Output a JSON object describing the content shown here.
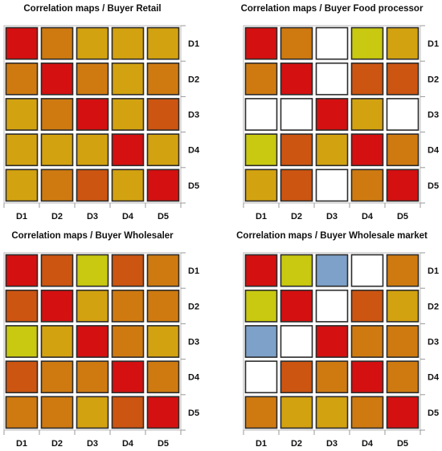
{
  "palette": {
    "red": "#d41010",
    "orange_red": "#cc5511",
    "orange": "#cf7a10",
    "gold": "#d3a210",
    "yellow_green": "#c8c910",
    "white": "#ffffff",
    "blue": "#7da1c9"
  },
  "chart_data": [
    {
      "type": "heatmap",
      "title": "Correlation maps / Buyer Retail",
      "x": [
        "D1",
        "D2",
        "D3",
        "D4",
        "D5"
      ],
      "y": [
        "D1",
        "D2",
        "D3",
        "D4",
        "D5"
      ],
      "colors": [
        [
          "red",
          "orange",
          "gold",
          "gold",
          "gold"
        ],
        [
          "orange",
          "red",
          "orange",
          "gold",
          "orange"
        ],
        [
          "gold",
          "orange",
          "red",
          "gold",
          "orange_red"
        ],
        [
          "gold",
          "gold",
          "gold",
          "red",
          "gold"
        ],
        [
          "gold",
          "orange",
          "orange_red",
          "gold",
          "red"
        ]
      ]
    },
    {
      "type": "heatmap",
      "title": "Correlation maps / Buyer Food processor",
      "x": [
        "D1",
        "D2",
        "D3",
        "D4",
        "D5"
      ],
      "y": [
        "D1",
        "D2",
        "D3",
        "D4",
        "D5"
      ],
      "colors": [
        [
          "red",
          "orange",
          "white",
          "yellow_green",
          "gold"
        ],
        [
          "orange",
          "red",
          "white",
          "orange_red",
          "orange_red"
        ],
        [
          "white",
          "white",
          "red",
          "gold",
          "white"
        ],
        [
          "yellow_green",
          "orange_red",
          "gold",
          "red",
          "orange"
        ],
        [
          "gold",
          "orange_red",
          "white",
          "orange",
          "red"
        ]
      ]
    },
    {
      "type": "heatmap",
      "title": "Correlation maps / Buyer Wholesaler",
      "x": [
        "D1",
        "D2",
        "D3",
        "D4",
        "D5"
      ],
      "y": [
        "D1",
        "D2",
        "D3",
        "D4",
        "D5"
      ],
      "colors": [
        [
          "red",
          "orange_red",
          "yellow_green",
          "orange_red",
          "orange"
        ],
        [
          "orange_red",
          "red",
          "gold",
          "orange",
          "orange"
        ],
        [
          "yellow_green",
          "gold",
          "red",
          "orange",
          "gold"
        ],
        [
          "orange_red",
          "orange",
          "orange",
          "red",
          "orange"
        ],
        [
          "orange",
          "orange",
          "gold",
          "orange_red",
          "red"
        ]
      ]
    },
    {
      "type": "heatmap",
      "title": "Correlation maps / Buyer Wholesale market",
      "x": [
        "D1",
        "D2",
        "D3",
        "D4",
        "D5"
      ],
      "y": [
        "D1",
        "D2",
        "D3",
        "D4",
        "D5"
      ],
      "colors": [
        [
          "red",
          "yellow_green",
          "blue",
          "white",
          "orange"
        ],
        [
          "yellow_green",
          "red",
          "white",
          "orange_red",
          "gold"
        ],
        [
          "blue",
          "white",
          "red",
          "orange",
          "orange"
        ],
        [
          "white",
          "orange_red",
          "orange",
          "red",
          "orange"
        ],
        [
          "orange",
          "gold",
          "gold",
          "orange",
          "red"
        ]
      ]
    }
  ]
}
